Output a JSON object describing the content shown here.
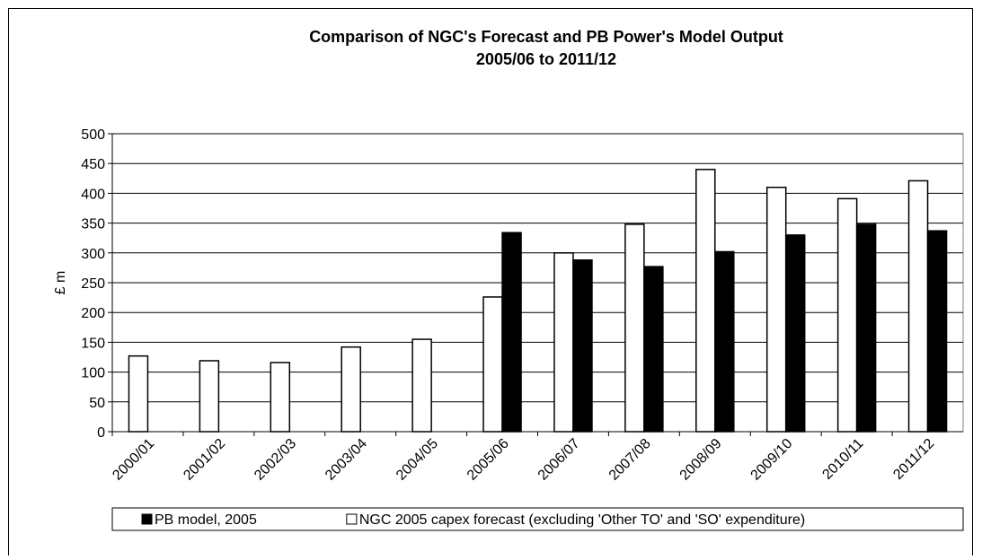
{
  "chart_data": {
    "type": "bar",
    "title": "Comparison of NGC's Forecast and PB Power's Model Output",
    "subtitle": "2005/06 to 2011/12",
    "y_label": "£ m",
    "categories": [
      "2000/01",
      "2001/02",
      "2002/03",
      "2003/04",
      "2004/05",
      "2005/06",
      "2006/07",
      "2007/08",
      "2008/09",
      "2009/10",
      "2010/11",
      "2011/12"
    ],
    "series": [
      {
        "name": "NGC 2005 capex forecast (excluding 'Other TO' and 'SO' expenditure)",
        "color": "#ffffff",
        "values": [
          127,
          119,
          116,
          142,
          155,
          226,
          300,
          348,
          440,
          410,
          391,
          421
        ]
      },
      {
        "name": "PB model, 2005",
        "color": "#000000",
        "values": [
          null,
          null,
          null,
          null,
          null,
          334,
          288,
          277,
          302,
          330,
          348,
          337
        ]
      }
    ],
    "ylim": [
      0,
      500
    ],
    "yticks": [
      0,
      50,
      100,
      150,
      200,
      250,
      300,
      350,
      400,
      450,
      500
    ],
    "grid": true,
    "legend": "bottom"
  }
}
